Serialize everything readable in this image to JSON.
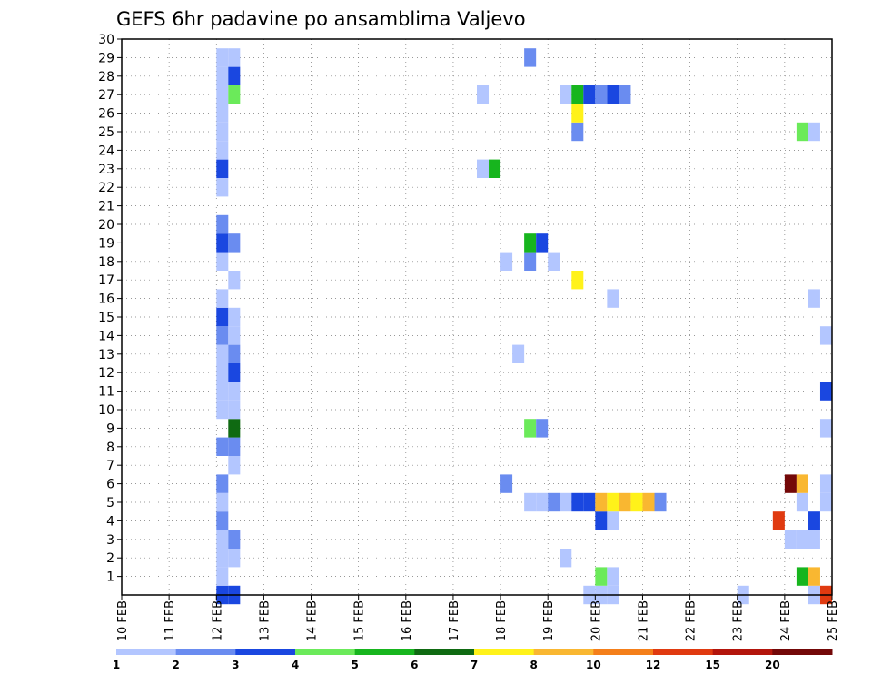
{
  "chart_data": {
    "type": "heatmap",
    "title": "GEFS 6hr padavine po ansamblima Valjevo",
    "xlabel": "",
    "ylabel": "",
    "x_ticks": [
      "10 FEB",
      "11 FEB",
      "12 FEB",
      "13 FEB",
      "14 FEB",
      "15 FEB",
      "16 FEB",
      "17 FEB",
      "18 FEB",
      "19 FEB",
      "20 FEB",
      "21 FEB",
      "22 FEB",
      "23 FEB",
      "24 FEB",
      "25 FEB"
    ],
    "xlim": [
      0,
      15
    ],
    "xlim_dates": [
      "10 FEB 00Z",
      "25 FEB 00Z"
    ],
    "y_ticks": [
      1,
      2,
      3,
      4,
      5,
      6,
      7,
      8,
      9,
      10,
      11,
      12,
      13,
      14,
      15,
      16,
      17,
      18,
      19,
      20,
      21,
      22,
      23,
      24,
      25,
      26,
      27,
      28,
      29,
      30
    ],
    "ylim": [
      0,
      30
    ],
    "grid": true,
    "legend_placement": "bottom",
    "colorbar": {
      "labels": [
        "1",
        "2",
        "3",
        "4",
        "5",
        "6",
        "7",
        "8",
        "10",
        "12",
        "15",
        "20"
      ],
      "colors": [
        "#b3c6ff",
        "#6a8cf0",
        "#1a47e0",
        "#6bea5a",
        "#17b51e",
        "#0f6a12",
        "#fff21a",
        "#f9b731",
        "#f47f1a",
        "#e03a10",
        "#b3150c",
        "#730808"
      ]
    },
    "cells_note": "x = step index (0.25 day each from 10 FEB 00Z), y = ensemble member row (0-30), c = colour bin index",
    "cells": [
      {
        "x": 8,
        "y": 0,
        "c": 2
      },
      {
        "x": 9,
        "y": 0,
        "c": 2
      },
      {
        "x": 8,
        "y": 1,
        "c": 0
      },
      {
        "x": 8,
        "y": 2,
        "c": 0
      },
      {
        "x": 9,
        "y": 2,
        "c": 0
      },
      {
        "x": 8,
        "y": 3,
        "c": 0
      },
      {
        "x": 9,
        "y": 3,
        "c": 1
      },
      {
        "x": 8,
        "y": 4,
        "c": 1
      },
      {
        "x": 8,
        "y": 5,
        "c": 0
      },
      {
        "x": 8,
        "y": 6,
        "c": 1
      },
      {
        "x": 9,
        "y": 7,
        "c": 0
      },
      {
        "x": 8,
        "y": 8,
        "c": 1
      },
      {
        "x": 9,
        "y": 8,
        "c": 1
      },
      {
        "x": 9,
        "y": 9,
        "c": 5
      },
      {
        "x": 8,
        "y": 10,
        "c": 0
      },
      {
        "x": 9,
        "y": 10,
        "c": 0
      },
      {
        "x": 8,
        "y": 11,
        "c": 0
      },
      {
        "x": 9,
        "y": 11,
        "c": 0
      },
      {
        "x": 8,
        "y": 12,
        "c": 0
      },
      {
        "x": 9,
        "y": 12,
        "c": 2
      },
      {
        "x": 8,
        "y": 13,
        "c": 0
      },
      {
        "x": 9,
        "y": 13,
        "c": 1
      },
      {
        "x": 8,
        "y": 14,
        "c": 1
      },
      {
        "x": 9,
        "y": 14,
        "c": 0
      },
      {
        "x": 8,
        "y": 15,
        "c": 2
      },
      {
        "x": 9,
        "y": 15,
        "c": 0
      },
      {
        "x": 8,
        "y": 16,
        "c": 0
      },
      {
        "x": 9,
        "y": 17,
        "c": 0
      },
      {
        "x": 8,
        "y": 18,
        "c": 0
      },
      {
        "x": 8,
        "y": 19,
        "c": 2
      },
      {
        "x": 9,
        "y": 19,
        "c": 1
      },
      {
        "x": 8,
        "y": 20,
        "c": 1
      },
      {
        "x": 8,
        "y": 22,
        "c": 0
      },
      {
        "x": 8,
        "y": 23,
        "c": 2
      },
      {
        "x": 8,
        "y": 24,
        "c": 0
      },
      {
        "x": 8,
        "y": 25,
        "c": 0
      },
      {
        "x": 8,
        "y": 26,
        "c": 0
      },
      {
        "x": 8,
        "y": 27,
        "c": 0
      },
      {
        "x": 9,
        "y": 27,
        "c": 3
      },
      {
        "x": 8,
        "y": 28,
        "c": 0
      },
      {
        "x": 9,
        "y": 28,
        "c": 2
      },
      {
        "x": 8,
        "y": 29,
        "c": 0
      },
      {
        "x": 9,
        "y": 29,
        "c": 0
      },
      {
        "x": 39,
        "y": 0,
        "c": 0
      },
      {
        "x": 40,
        "y": 0,
        "c": 0
      },
      {
        "x": 59,
        "y": 0,
        "c": 9
      },
      {
        "x": 58,
        "y": 0,
        "c": 0
      },
      {
        "x": 41,
        "y": 0,
        "c": 0
      },
      {
        "x": 52,
        "y": 0,
        "c": 0
      },
      {
        "x": 40,
        "y": 1,
        "c": 3
      },
      {
        "x": 41,
        "y": 1,
        "c": 0
      },
      {
        "x": 57,
        "y": 1,
        "c": 4
      },
      {
        "x": 58,
        "y": 1,
        "c": 7
      },
      {
        "x": 37,
        "y": 2,
        "c": 0
      },
      {
        "x": 56,
        "y": 3,
        "c": 0
      },
      {
        "x": 57,
        "y": 3,
        "c": 0
      },
      {
        "x": 58,
        "y": 3,
        "c": 0
      },
      {
        "x": 40,
        "y": 4,
        "c": 2
      },
      {
        "x": 41,
        "y": 4,
        "c": 0
      },
      {
        "x": 55,
        "y": 4,
        "c": 9
      },
      {
        "x": 58,
        "y": 4,
        "c": 2
      },
      {
        "x": 34,
        "y": 5,
        "c": 0
      },
      {
        "x": 35,
        "y": 5,
        "c": 0
      },
      {
        "x": 36,
        "y": 5,
        "c": 1
      },
      {
        "x": 37,
        "y": 5,
        "c": 0
      },
      {
        "x": 38,
        "y": 5,
        "c": 2
      },
      {
        "x": 39,
        "y": 5,
        "c": 2
      },
      {
        "x": 40,
        "y": 5,
        "c": 7
      },
      {
        "x": 41,
        "y": 5,
        "c": 6
      },
      {
        "x": 42,
        "y": 5,
        "c": 7
      },
      {
        "x": 43,
        "y": 5,
        "c": 6
      },
      {
        "x": 44,
        "y": 5,
        "c": 7
      },
      {
        "x": 45,
        "y": 5,
        "c": 1
      },
      {
        "x": 57,
        "y": 5,
        "c": 0
      },
      {
        "x": 59,
        "y": 5,
        "c": 0
      },
      {
        "x": 32,
        "y": 6,
        "c": 1
      },
      {
        "x": 56,
        "y": 6,
        "c": 11
      },
      {
        "x": 57,
        "y": 6,
        "c": 7
      },
      {
        "x": 59,
        "y": 6,
        "c": 0
      },
      {
        "x": 34,
        "y": 9,
        "c": 3
      },
      {
        "x": 35,
        "y": 9,
        "c": 1
      },
      {
        "x": 59,
        "y": 9,
        "c": 0
      },
      {
        "x": 59,
        "y": 11,
        "c": 2
      },
      {
        "x": 33,
        "y": 13,
        "c": 0
      },
      {
        "x": 59,
        "y": 14,
        "c": 0
      },
      {
        "x": 41,
        "y": 16,
        "c": 0
      },
      {
        "x": 58,
        "y": 16,
        "c": 0
      },
      {
        "x": 38,
        "y": 17,
        "c": 6
      },
      {
        "x": 32,
        "y": 18,
        "c": 0
      },
      {
        "x": 34,
        "y": 18,
        "c": 1
      },
      {
        "x": 36,
        "y": 18,
        "c": 0
      },
      {
        "x": 34,
        "y": 19,
        "c": 4
      },
      {
        "x": 35,
        "y": 19,
        "c": 2
      },
      {
        "x": 30,
        "y": 23,
        "c": 0
      },
      {
        "x": 31,
        "y": 23,
        "c": 4
      },
      {
        "x": 38,
        "y": 25,
        "c": 1
      },
      {
        "x": 57,
        "y": 25,
        "c": 3
      },
      {
        "x": 58,
        "y": 25,
        "c": 0
      },
      {
        "x": 38,
        "y": 26,
        "c": 6
      },
      {
        "x": 30,
        "y": 27,
        "c": 0
      },
      {
        "x": 37,
        "y": 27,
        "c": 0
      },
      {
        "x": 38,
        "y": 27,
        "c": 4
      },
      {
        "x": 39,
        "y": 27,
        "c": 2
      },
      {
        "x": 40,
        "y": 27,
        "c": 1
      },
      {
        "x": 41,
        "y": 27,
        "c": 2
      },
      {
        "x": 42,
        "y": 27,
        "c": 1
      },
      {
        "x": 34,
        "y": 29,
        "c": 1
      }
    ]
  }
}
